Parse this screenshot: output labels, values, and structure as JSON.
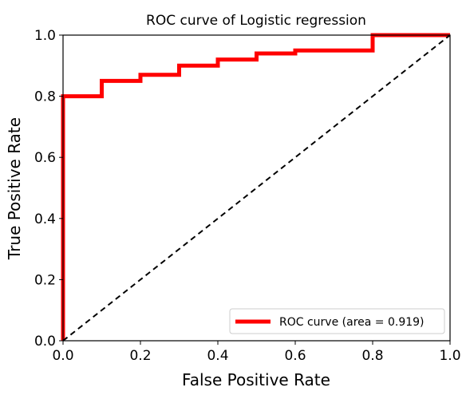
{
  "chart_data": {
    "type": "line",
    "title": "ROC curve of Logistic regression",
    "xlabel": "False Positive Rate",
    "ylabel": "True Positive Rate",
    "xlim": [
      0.0,
      1.0
    ],
    "ylim": [
      0.0,
      1.0
    ],
    "xticks": [
      "0.0",
      "0.2",
      "0.4",
      "0.6",
      "0.8",
      "1.0"
    ],
    "yticks": [
      "0.0",
      "0.2",
      "0.4",
      "0.6",
      "0.8",
      "1.0"
    ],
    "grid": false,
    "legend_position": "lower right",
    "series": [
      {
        "name": "ROC curve (area = 0.919)",
        "color": "#ff0000",
        "style": "solid-step",
        "x": [
          0.0,
          0.0,
          0.0,
          0.1,
          0.1,
          0.2,
          0.2,
          0.3,
          0.3,
          0.4,
          0.4,
          0.5,
          0.5,
          0.6,
          0.6,
          0.7,
          0.7,
          0.8,
          0.8,
          0.8,
          0.8,
          1.0
        ],
        "y": [
          0.0,
          0.8,
          0.8,
          0.8,
          0.85,
          0.85,
          0.87,
          0.87,
          0.9,
          0.9,
          0.92,
          0.92,
          0.94,
          0.94,
          0.95,
          0.95,
          0.95,
          0.95,
          0.975,
          0.975,
          1.0,
          1.0
        ]
      },
      {
        "color": "#000000",
        "style": "dashed",
        "x": [
          0.0,
          1.0
        ],
        "y": [
          0.0,
          1.0
        ]
      }
    ]
  }
}
